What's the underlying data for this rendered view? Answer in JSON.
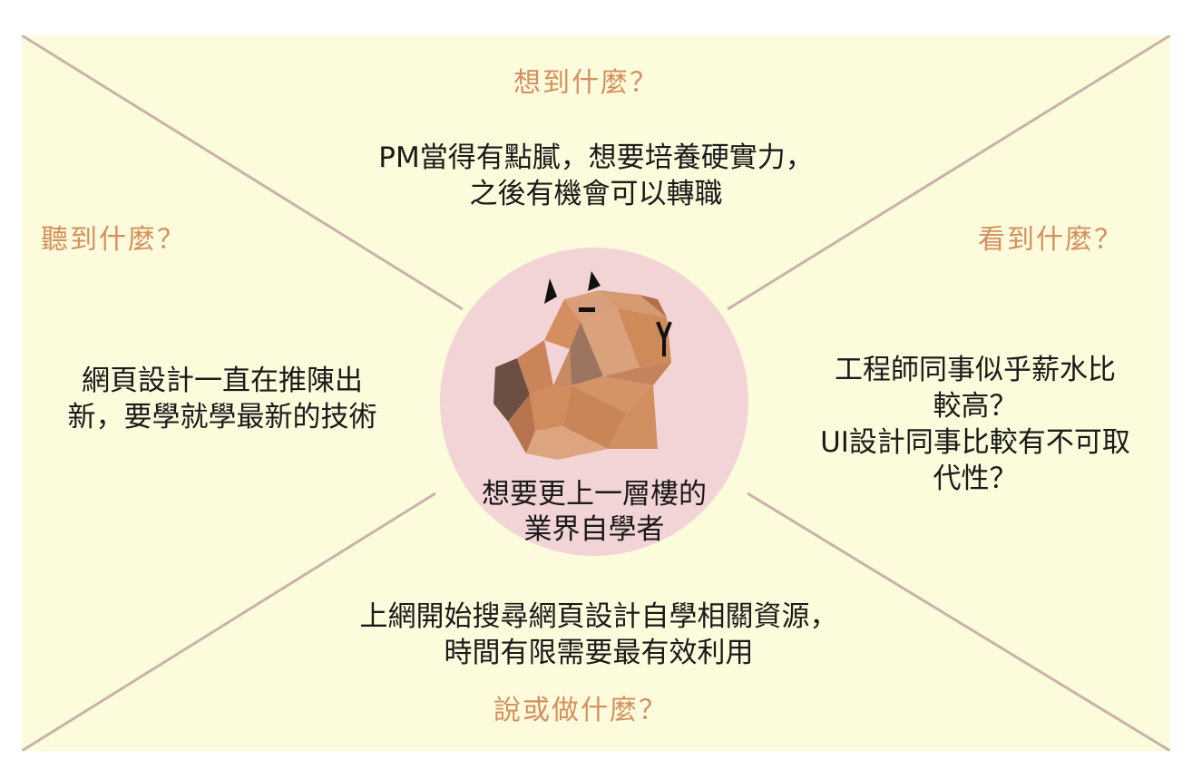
{
  "colors": {
    "background": "#fcfbdc",
    "diagonal_line": "#c9b2aa",
    "circle": "#f3d4d6",
    "label": "#d4905e",
    "text": "#1a1a1a"
  },
  "labels": {
    "think": "想到什麼？",
    "hear": "聽到什麼？",
    "see": "看到什麼？",
    "say_do": "說或做什麼？"
  },
  "think_text": [
    "PM當得有點膩，想要培養硬實力，",
    "之後有機會可以轉職"
  ],
  "hear_text": [
    "網頁設計一直在推陳出",
    "新，要學就學最新的技術"
  ],
  "see_text": [
    "工程師同事似乎薪水比",
    "較高？",
    "UI設計同事比較有不可取",
    "代性？"
  ],
  "say_do_text": [
    "上網開始搜尋網頁設計自學相關資源，",
    "時間有限需要最有效利用"
  ],
  "persona": {
    "icon": "capybara-lowpoly-icon",
    "lines": [
      "想要更上一層樓的",
      "業界自學者"
    ]
  }
}
